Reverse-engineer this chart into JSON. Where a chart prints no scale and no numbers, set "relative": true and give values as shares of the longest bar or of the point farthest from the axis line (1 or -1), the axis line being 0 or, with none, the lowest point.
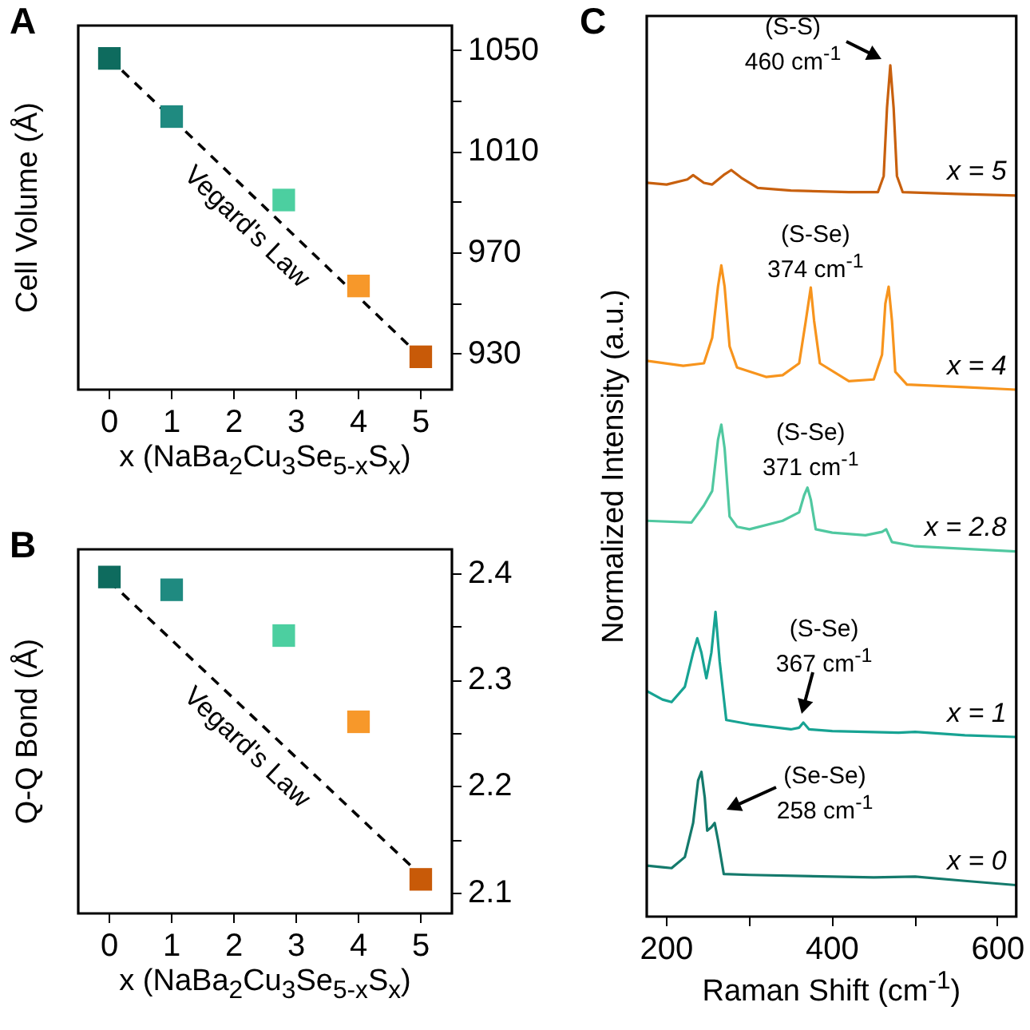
{
  "chart_data": [
    {
      "type": "scatter",
      "title": "A",
      "xlabel": "x (NaBa$_{2}$Cu$_{3}$Se$_{5-x}$S$_{x}$)",
      "ylabel": "Cell Volume (Å)",
      "x": [
        0,
        1,
        2.8,
        4,
        5
      ],
      "xlim": [
        -0.5,
        5.5
      ],
      "xticks": [
        0,
        1,
        2,
        3,
        4,
        5
      ],
      "ylim": [
        916,
        1060
      ],
      "yticks": [
        930,
        {
          "value": 950,
          "label": null
        },
        970,
        {
          "value": 990,
          "label": null
        },
        1010,
        {
          "value": 1030,
          "label": null
        },
        1050
      ],
      "marker": "square",
      "grid": false,
      "legend": false,
      "series": [
        {
          "type": "scatter",
          "colors": [
            "#0e6b5e",
            "#1f8a80",
            "#4ccfa0",
            "#f7982a",
            "#c85a08"
          ],
          "values": [
            1047,
            1024,
            991,
            957,
            929
          ]
        },
        {
          "type": "line",
          "name": "Vegard's Law",
          "x": [
            0,
            5
          ],
          "values": [
            1047,
            929
          ],
          "color": "#000000",
          "line_style": "dashed",
          "marker": "none"
        }
      ]
    },
    {
      "type": "scatter",
      "title": "B",
      "xlabel": "x (NaBa$_{2}$Cu$_{3}$Se$_{5-x}$S$_{x}$)",
      "ylabel": "Q-Q Bond (Å)",
      "x": [
        0,
        1,
        2.8,
        4,
        5
      ],
      "xlim": [
        -0.5,
        5.5
      ],
      "xticks": [
        0,
        1,
        2,
        3,
        4,
        5
      ],
      "ylim": [
        2.081,
        2.423
      ],
      "yticks": [
        2.1,
        {
          "value": 2.15,
          "label": null
        },
        2.2,
        {
          "value": 2.25,
          "label": null
        },
        2.3,
        {
          "value": 2.35,
          "label": null
        },
        2.4
      ],
      "marker": "square",
      "grid": false,
      "legend": false,
      "series": [
        {
          "type": "scatter",
          "colors": [
            "#0e6b5e",
            "#1f8a80",
            "#4ccfa0",
            "#f7982a",
            "#c85a08"
          ],
          "values": [
            2.397,
            2.385,
            2.342,
            2.261,
            2.113
          ]
        },
        {
          "type": "line",
          "name": "Vegard's Law",
          "x": [
            0,
            5
          ],
          "values": [
            2.393,
            2.117
          ],
          "color": "#000000",
          "line_style": "dashed",
          "marker": "none"
        }
      ]
    },
    {
      "type": "line",
      "title": "C",
      "xlabel": "Raman Shift (cm$^{-1}$)",
      "ylabel": "Normalized Intensity (a.u.)",
      "relative": true,
      "xlim": [
        176,
        622
      ],
      "xticks": [
        200,
        {
          "value": 300,
          "label": null
        },
        400,
        {
          "value": 500,
          "label": null
        },
        600
      ],
      "tick_labels": "x",
      "marker": "none",
      "grid": false,
      "legend": false,
      "series": [
        {
          "name": "x = 0",
          "color": "#147a6c",
          "x": [
            176,
            195,
            206,
            222,
            232,
            238,
            242,
            246,
            249,
            254,
            258,
            262,
            269,
            300,
            400,
            450,
            500,
            560,
            622
          ],
          "values": [
            0.06,
            0.058,
            0.057,
            0.07,
            0.11,
            0.16,
            0.17,
            0.14,
            0.101,
            0.105,
            0.11,
            0.09,
            0.05,
            0.049,
            0.047,
            0.046,
            0.047,
            0.042,
            0.037
          ]
        },
        {
          "name": "x = 1",
          "color": "#17a393",
          "x": [
            176,
            195,
            206,
            222,
            232,
            237,
            242,
            248,
            254,
            259,
            264,
            272,
            300,
            350,
            360,
            365,
            372,
            400,
            480,
            500,
            560,
            622
          ],
          "values": [
            0.265,
            0.255,
            0.252,
            0.27,
            0.31,
            0.327,
            0.31,
            0.28,
            0.31,
            0.358,
            0.3,
            0.231,
            0.226,
            0.22,
            0.222,
            0.228,
            0.22,
            0.218,
            0.216,
            0.217,
            0.213,
            0.211
          ]
        },
        {
          "name": "x = 2.8",
          "color": "#50c8a0",
          "x": [
            176,
            230,
            245,
            255,
            262,
            266,
            270,
            276,
            285,
            300,
            340,
            360,
            366,
            370,
            374,
            380,
            400,
            440,
            460,
            465,
            472,
            500,
            560,
            622
          ],
          "values": [
            0.465,
            0.463,
            0.483,
            0.5,
            0.56,
            0.578,
            0.55,
            0.47,
            0.458,
            0.455,
            0.465,
            0.475,
            0.495,
            0.504,
            0.49,
            0.455,
            0.451,
            0.448,
            0.452,
            0.455,
            0.44,
            0.435,
            0.432,
            0.429
          ]
        },
        {
          "name": "x = 4",
          "color": "#f7941d",
          "x": [
            176,
            220,
            245,
            255,
            262,
            266,
            270,
            276,
            285,
            320,
            340,
            360,
            368,
            374,
            378,
            385,
            420,
            450,
            460,
            464,
            468,
            472,
            476,
            490,
            560,
            622
          ],
          "values": [
            0.653,
            0.647,
            0.65,
            0.68,
            0.74,
            0.765,
            0.74,
            0.67,
            0.645,
            0.634,
            0.636,
            0.65,
            0.7,
            0.739,
            0.7,
            0.65,
            0.629,
            0.631,
            0.66,
            0.72,
            0.74,
            0.7,
            0.64,
            0.625,
            0.622,
            0.619
          ]
        },
        {
          "name": "x = 5",
          "color": "#c8600e",
          "x": [
            176,
            200,
            225,
            232,
            245,
            255,
            270,
            278,
            290,
            310,
            350,
            420,
            455,
            462,
            466,
            470,
            474,
            478,
            485,
            550,
            622
          ],
          "values": [
            0.862,
            0.86,
            0.866,
            0.871,
            0.862,
            0.86,
            0.872,
            0.877,
            0.868,
            0.856,
            0.853,
            0.851,
            0.851,
            0.87,
            0.95,
            1.0,
            0.95,
            0.87,
            0.851,
            0.849,
            0.847
          ]
        }
      ],
      "annotations": [
        {
          "text": "(S-S)\n460 cm$^{-1}$",
          "x": 470,
          "y": 1.0
        },
        {
          "text": "(S-Se)\n374 cm$^{-1}$",
          "x": 374,
          "y": 0.739
        },
        {
          "text": "(S-Se)\n371 cm$^{-1}$",
          "x": 370,
          "y": 0.504
        },
        {
          "text": "(S-Se)\n367 cm$^{-1}$",
          "x": 365,
          "y": 0.228
        },
        {
          "text": "(Se-Se)\n258 cm$^{-1}$",
          "x": 258,
          "y": 0.11
        }
      ]
    }
  ]
}
